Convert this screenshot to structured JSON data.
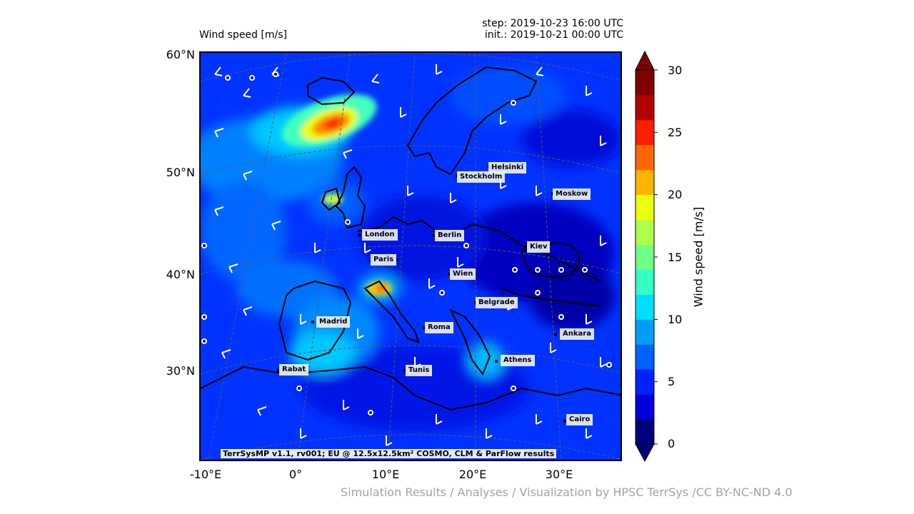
{
  "title_left": "Wind speed [m/s]",
  "title_right": {
    "step": "step: 2019-10-23 16:00 UTC",
    "init": "init.: 2019-10-21 00:00 UTC"
  },
  "lat_labels": [
    "60°N",
    "50°N",
    "40°N",
    "30°N"
  ],
  "lon_labels": [
    "-10°E",
    "0°",
    "10°E",
    "20°E",
    "30°E"
  ],
  "cities": [
    {
      "name": "Helsinki"
    },
    {
      "name": "Stockholm"
    },
    {
      "name": "Moskow"
    },
    {
      "name": "London"
    },
    {
      "name": "Berlin"
    },
    {
      "name": "Kiev"
    },
    {
      "name": "Paris"
    },
    {
      "name": "Wien"
    },
    {
      "name": "Belgrade"
    },
    {
      "name": "Madrid"
    },
    {
      "name": "Roma"
    },
    {
      "name": "Ankara"
    },
    {
      "name": "Athens"
    },
    {
      "name": "Rabat"
    },
    {
      "name": "Tunis"
    },
    {
      "name": "Cairo"
    }
  ],
  "credit": "TerrSysMP v1.1, rv001; EU @ 12.5x12.5km² COSMO, CLM & ParFlow results",
  "colorbar": {
    "label": "Wind speed [m/s]",
    "ticks": [
      "0",
      "5",
      "10",
      "15",
      "20",
      "25",
      "30"
    ],
    "colors": [
      "#00007f",
      "#0000d9",
      "#0022ff",
      "#0061ff",
      "#009dff",
      "#00dfff",
      "#33ffc6",
      "#70ff87",
      "#adff4a",
      "#ebff0c",
      "#ffb300",
      "#ff6500",
      "#ff1e00",
      "#b20000",
      "#7f0000"
    ]
  },
  "footer": "Simulation Results / Analyses / Visualization by HPSC TerrSys /CC BY-NC-ND 4.0"
}
